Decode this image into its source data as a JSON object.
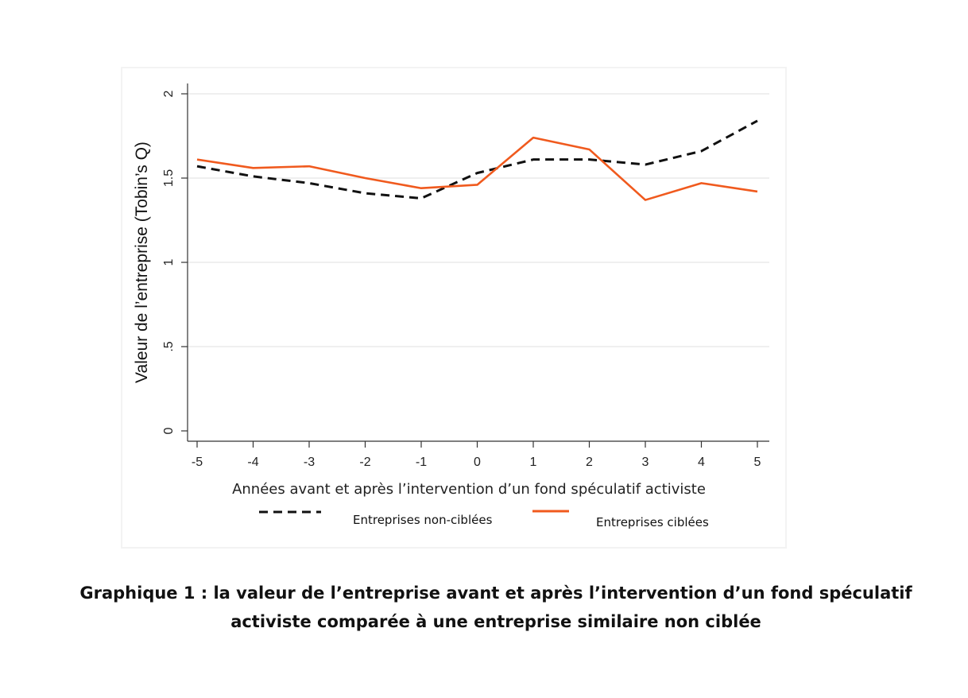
{
  "chart_data": {
    "type": "line",
    "x": [
      -5,
      -4,
      -3,
      -2,
      -1,
      0,
      1,
      2,
      3,
      4,
      5
    ],
    "series": [
      {
        "name": "Entreprises non-ciblées",
        "color": "#111111",
        "style": "dashed",
        "values": [
          1.57,
          1.51,
          1.47,
          1.41,
          1.38,
          1.53,
          1.61,
          1.61,
          1.58,
          1.66,
          1.84
        ]
      },
      {
        "name": "Entreprises ciblées",
        "color": "#f05a1e",
        "style": "solid",
        "values": [
          1.61,
          1.56,
          1.57,
          1.5,
          1.44,
          1.46,
          1.74,
          1.67,
          1.37,
          1.47,
          1.42
        ]
      }
    ],
    "xlabel": "Années avant et après l’intervention d’un fond spéculatif activiste",
    "ylabel": "Valeur de l’entreprise (Tobin’s Q)",
    "xticks": [
      "-5",
      "-4",
      "-3",
      "-2",
      "-1",
      "0",
      "1",
      "2",
      "3",
      "4",
      "5"
    ],
    "yticks": [
      {
        "v": 0,
        "label": "0"
      },
      {
        "v": 0.5,
        "label": ".5"
      },
      {
        "v": 1,
        "label": "1"
      },
      {
        "v": 1.5,
        "label": "1.5"
      },
      {
        "v": 2,
        "label": "2"
      }
    ],
    "xlim": [
      -5,
      5
    ],
    "ylim": [
      0,
      2
    ],
    "grid": true,
    "legend": "bottom"
  },
  "caption": {
    "line1": "Graphique 1 : la valeur de l’entreprise avant et après l’intervention d’un fond spéculatif",
    "line2": "activiste comparée à une entreprise similaire non ciblée"
  }
}
